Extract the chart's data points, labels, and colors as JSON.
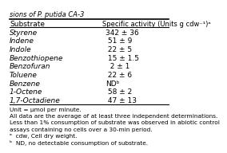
{
  "title": "sions of P. putida CA-3",
  "col1_header": "Substrate",
  "col2_header": "Specific activity (Units g cdw⁻¹)ᵃ",
  "rows": [
    [
      "Styrene",
      "342 ± 36"
    ],
    [
      "Indene",
      " 51 ± 9"
    ],
    [
      "Indole",
      " 22 ± 5"
    ],
    [
      "Benzothiopene",
      " 15 ± 1.5"
    ],
    [
      "Benzofuran",
      "  2 ± 1"
    ],
    [
      "Toluene",
      " 22 ± 6"
    ],
    [
      "Benzene",
      "NDᵇ"
    ],
    [
      "1-Octene",
      " 58 ± 2"
    ],
    [
      "1,7-Octadiene",
      " 47 ± 13"
    ]
  ],
  "footnotes": [
    "Unit = μmol per minute.",
    "All data are the average of at least three independent determinations.",
    "Less than 1% consumption of substrate was observed in abiotic control",
    "assays containing no cells over a 30-min period.",
    "ᵃ  cdw, Cell dry weight.",
    "ᵇ  ND, no detectable consumption of substrate."
  ],
  "bg_color": "#ffffff",
  "text_color": "#000000",
  "font_size": 6.5,
  "header_font_size": 6.5
}
